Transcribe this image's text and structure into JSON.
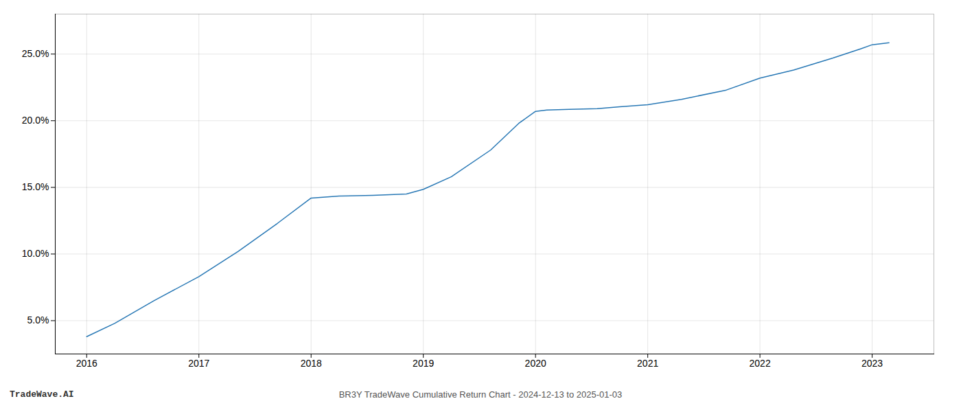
{
  "chart_data": {
    "type": "line",
    "x": [
      2016.0,
      2016.25,
      2016.6,
      2017.0,
      2017.35,
      2017.7,
      2018.0,
      2018.25,
      2018.55,
      2018.85,
      2019.0,
      2019.25,
      2019.6,
      2019.85,
      2020.0,
      2020.1,
      2020.3,
      2020.55,
      2020.75,
      2021.0,
      2021.3,
      2021.7,
      2022.0,
      2022.3,
      2022.65,
      2022.9,
      2023.0,
      2023.15
    ],
    "series": [
      {
        "color": "#2878b5",
        "values": [
          3.8,
          4.8,
          6.5,
          8.3,
          10.2,
          12.3,
          14.2,
          14.35,
          14.4,
          14.5,
          14.85,
          15.8,
          17.8,
          19.8,
          20.7,
          20.8,
          20.85,
          20.9,
          21.05,
          21.2,
          21.6,
          22.3,
          23.2,
          23.8,
          24.7,
          25.4,
          25.7,
          25.85
        ]
      }
    ],
    "xlim": [
      2015.72,
      2023.55
    ],
    "xticks": [
      2016,
      2017,
      2018,
      2019,
      2020,
      2021,
      2022,
      2023
    ],
    "ylim": [
      2.5,
      28.0
    ],
    "yticks": [
      {
        "value": 5.0,
        "label": "5.0%"
      },
      {
        "value": 10.0,
        "label": "10.0%"
      },
      {
        "value": 15.0,
        "label": "15.0%"
      },
      {
        "value": 20.0,
        "label": "20.0%"
      },
      {
        "value": 25.0,
        "label": "25.0%"
      }
    ],
    "grid": true,
    "annotations": [
      "TradeWave.AI",
      "BR3Y TradeWave Cumulative Return Chart - 2024-12-13 to 2025-01-03"
    ]
  }
}
